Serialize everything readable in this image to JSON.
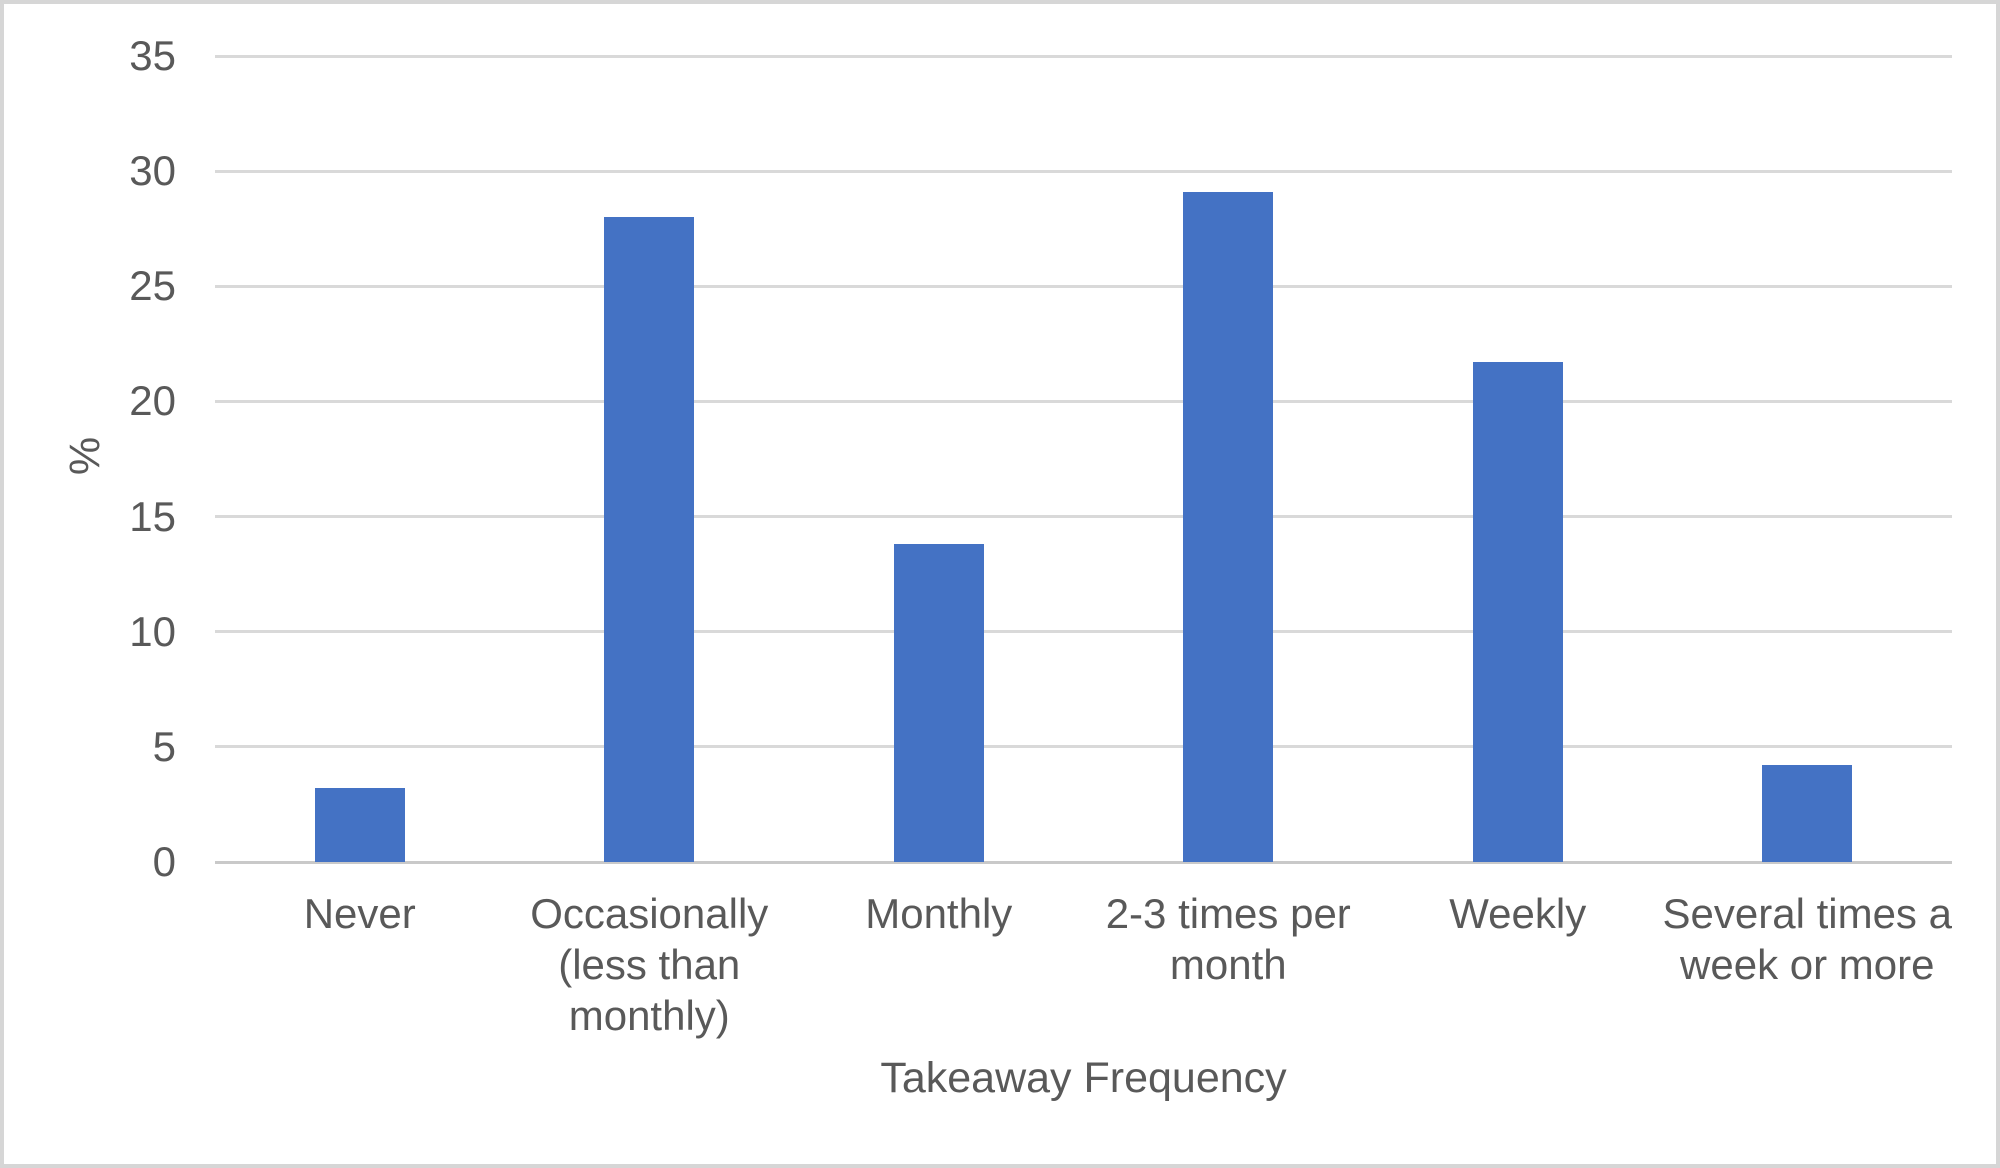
{
  "chart_data": {
    "type": "bar",
    "title": "",
    "xlabel": "Takeaway Frequency",
    "ylabel": "%",
    "categories": [
      "Never",
      "Occasionally (less than monthly)",
      "Monthly",
      "2-3 times per month",
      "Weekly",
      "Several times a week or more"
    ],
    "values": [
      3.2,
      28.0,
      13.8,
      29.1,
      21.7,
      4.2
    ],
    "ylim": [
      0,
      35
    ],
    "y_ticks": [
      0,
      5,
      10,
      15,
      20,
      25,
      30,
      35
    ],
    "grid": true,
    "legend": false,
    "bar_color": "#4472C4",
    "gridline_color": "#D9D9D9",
    "axis_line_color": "#C9C9C9",
    "text_color": "#595959"
  }
}
